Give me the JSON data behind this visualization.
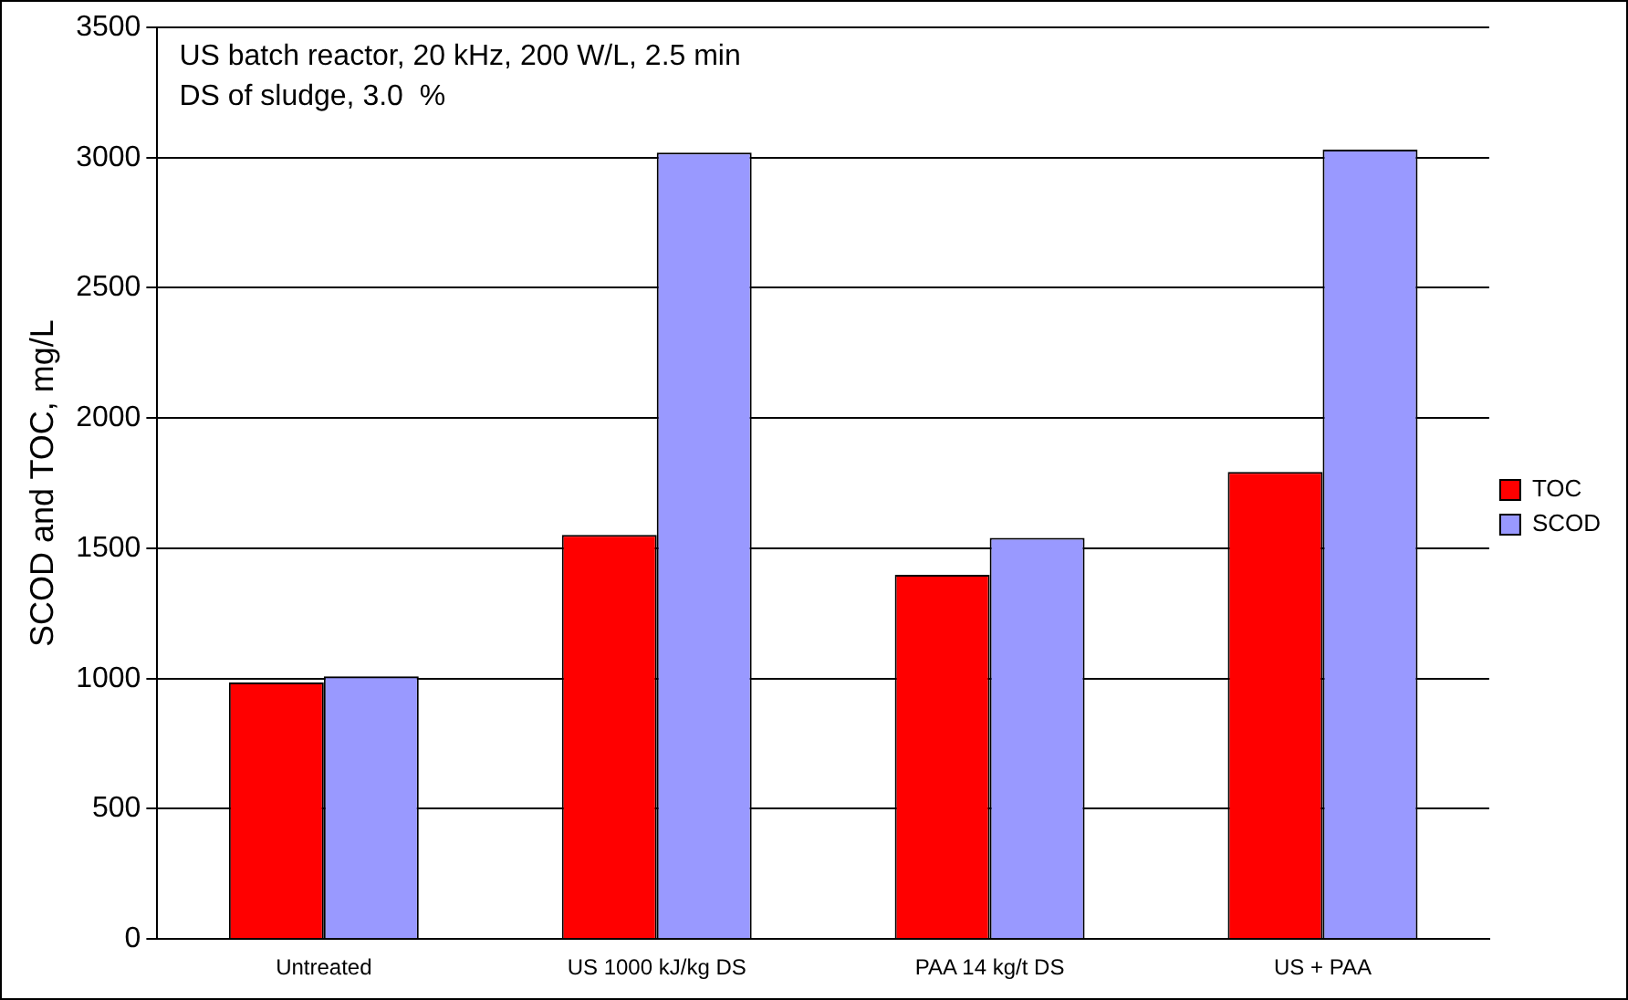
{
  "chart_data": {
    "type": "bar",
    "ylabel": "SCOD and TOC, mg/L",
    "categories": [
      "Untreated",
      "US 1000 kJ/kg DS",
      "PAA 14 kg/t DS",
      "US + PAA"
    ],
    "series": [
      {
        "name": "TOC",
        "color": "#ff0000",
        "values": [
          985,
          1552,
          1398,
          1793
        ]
      },
      {
        "name": "SCOD",
        "color": "#9999ff",
        "values": [
          1009,
          3019,
          1540,
          3031
        ]
      }
    ],
    "ylim": [
      0,
      3500
    ],
    "yticks": [
      0,
      500,
      1000,
      1500,
      2000,
      2500,
      3000,
      3500
    ],
    "grid": "y",
    "legend": "right",
    "annotations": [
      "US batch reactor, 20 kHz, 200 W/L, 2.5 min",
      "DS of sludge, 3.0  %"
    ]
  }
}
